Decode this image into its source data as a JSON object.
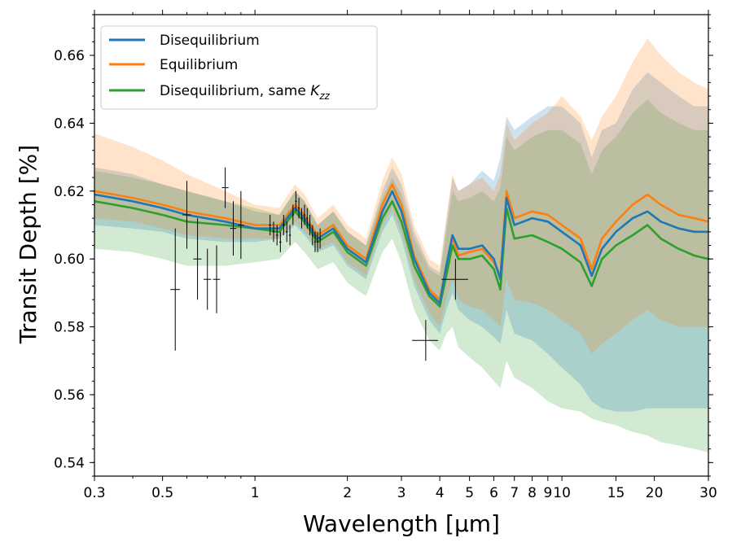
{
  "chart_data": {
    "type": "line",
    "xscale": "log",
    "xlim": [
      0.3,
      30
    ],
    "ylim": [
      0.536,
      0.672
    ],
    "xlabel": "Wavelength [µm]",
    "ylabel": "Transit Depth [%]",
    "xticks": [
      {
        "v": 0.3,
        "label": "0.3"
      },
      {
        "v": 0.5,
        "label": "0.5"
      },
      {
        "v": 1,
        "label": "1"
      },
      {
        "v": 2,
        "label": "2"
      },
      {
        "v": 3,
        "label": "3"
      },
      {
        "v": 4,
        "label": "4"
      },
      {
        "v": 5,
        "label": "5"
      },
      {
        "v": 6,
        "label": "6"
      },
      {
        "v": 7,
        "label": "7"
      },
      {
        "v": 8,
        "label": "8"
      },
      {
        "v": 9,
        "label": "9"
      },
      {
        "v": 10,
        "label": "10"
      },
      {
        "v": 15,
        "label": "15"
      },
      {
        "v": 20,
        "label": "20"
      },
      {
        "v": 30,
        "label": "30"
      }
    ],
    "yticks": [
      {
        "v": 0.54,
        "label": "0.54"
      },
      {
        "v": 0.56,
        "label": "0.56"
      },
      {
        "v": 0.58,
        "label": "0.58"
      },
      {
        "v": 0.6,
        "label": "0.60"
      },
      {
        "v": 0.62,
        "label": "0.62"
      },
      {
        "v": 0.64,
        "label": "0.64"
      },
      {
        "v": 0.66,
        "label": "0.66"
      }
    ],
    "legend": {
      "placement": "top-left",
      "entries": [
        {
          "name": "Disequilibrium",
          "color": "#1f77b4"
        },
        {
          "name": "Equilibrium",
          "color": "#ff7f0e"
        },
        {
          "name": "Disequilibrium, same ",
          "name_math": "K",
          "name_sub": "zz",
          "color": "#2ca02c"
        }
      ]
    },
    "series": [
      {
        "name": "Disequilibrium",
        "color": "#1f77b4",
        "x": [
          0.3,
          0.4,
          0.5,
          0.6,
          0.8,
          1.0,
          1.2,
          1.35,
          1.45,
          1.6,
          1.8,
          2.0,
          2.3,
          2.6,
          2.8,
          3.0,
          3.3,
          3.7,
          4.0,
          4.2,
          4.4,
          4.6,
          5.0,
          5.5,
          6.0,
          6.3,
          6.6,
          7.0,
          8.0,
          9.0,
          10.0,
          11.5,
          12.5,
          13.5,
          15.0,
          17.0,
          19.0,
          21.0,
          24.0,
          27.0,
          30.0
        ],
        "y": [
          0.619,
          0.617,
          0.615,
          0.613,
          0.611,
          0.609,
          0.609,
          0.615,
          0.612,
          0.606,
          0.609,
          0.603,
          0.599,
          0.614,
          0.62,
          0.614,
          0.6,
          0.59,
          0.587,
          0.598,
          0.607,
          0.603,
          0.603,
          0.604,
          0.6,
          0.594,
          0.618,
          0.61,
          0.612,
          0.611,
          0.608,
          0.604,
          0.595,
          0.603,
          0.608,
          0.612,
          0.614,
          0.611,
          0.609,
          0.608,
          0.608
        ],
        "band_lower": [
          0.61,
          0.609,
          0.608,
          0.606,
          0.605,
          0.605,
          0.606,
          0.61,
          0.607,
          0.602,
          0.604,
          0.598,
          0.594,
          0.608,
          0.613,
          0.606,
          0.592,
          0.582,
          0.578,
          0.585,
          0.59,
          0.585,
          0.582,
          0.58,
          0.577,
          0.575,
          0.585,
          0.578,
          0.576,
          0.572,
          0.568,
          0.563,
          0.558,
          0.556,
          0.555,
          0.555,
          0.556,
          0.556,
          0.556,
          0.556,
          0.556
        ],
        "band_upper": [
          0.627,
          0.625,
          0.622,
          0.62,
          0.617,
          0.614,
          0.613,
          0.62,
          0.617,
          0.61,
          0.614,
          0.608,
          0.604,
          0.62,
          0.627,
          0.622,
          0.608,
          0.598,
          0.596,
          0.611,
          0.624,
          0.62,
          0.622,
          0.626,
          0.623,
          0.63,
          0.642,
          0.638,
          0.642,
          0.645,
          0.645,
          0.64,
          0.63,
          0.638,
          0.64,
          0.65,
          0.655,
          0.652,
          0.648,
          0.645,
          0.645
        ]
      },
      {
        "name": "Equilibrium",
        "color": "#ff7f0e",
        "x": [
          0.3,
          0.4,
          0.5,
          0.6,
          0.8,
          1.0,
          1.2,
          1.35,
          1.45,
          1.6,
          1.8,
          2.0,
          2.3,
          2.6,
          2.8,
          3.0,
          3.3,
          3.7,
          4.0,
          4.2,
          4.4,
          4.6,
          5.0,
          5.5,
          6.0,
          6.3,
          6.6,
          7.0,
          8.0,
          9.0,
          10.0,
          11.5,
          12.5,
          13.5,
          15.0,
          17.0,
          19.0,
          21.0,
          24.0,
          27.0,
          30.0
        ],
        "y": [
          0.62,
          0.618,
          0.616,
          0.614,
          0.612,
          0.61,
          0.61,
          0.616,
          0.613,
          0.607,
          0.61,
          0.604,
          0.6,
          0.616,
          0.622,
          0.616,
          0.601,
          0.591,
          0.588,
          0.598,
          0.606,
          0.601,
          0.602,
          0.603,
          0.599,
          0.595,
          0.62,
          0.612,
          0.614,
          0.613,
          0.61,
          0.606,
          0.597,
          0.606,
          0.611,
          0.616,
          0.619,
          0.616,
          0.613,
          0.612,
          0.611
        ],
        "band_lower": [
          0.612,
          0.611,
          0.609,
          0.607,
          0.606,
          0.606,
          0.606,
          0.611,
          0.608,
          0.603,
          0.605,
          0.599,
          0.595,
          0.61,
          0.615,
          0.608,
          0.594,
          0.584,
          0.58,
          0.588,
          0.594,
          0.588,
          0.586,
          0.585,
          0.582,
          0.58,
          0.594,
          0.588,
          0.587,
          0.585,
          0.582,
          0.578,
          0.572,
          0.575,
          0.578,
          0.582,
          0.585,
          0.582,
          0.58,
          0.58,
          0.58
        ],
        "band_upper": [
          0.637,
          0.633,
          0.629,
          0.625,
          0.62,
          0.616,
          0.615,
          0.622,
          0.619,
          0.612,
          0.616,
          0.61,
          0.606,
          0.623,
          0.63,
          0.625,
          0.61,
          0.6,
          0.598,
          0.612,
          0.625,
          0.62,
          0.622,
          0.624,
          0.62,
          0.625,
          0.64,
          0.635,
          0.64,
          0.643,
          0.648,
          0.642,
          0.635,
          0.642,
          0.648,
          0.658,
          0.665,
          0.66,
          0.655,
          0.652,
          0.65
        ]
      },
      {
        "name": "Disequilibrium, same Kzz",
        "color": "#2ca02c",
        "x": [
          0.3,
          0.4,
          0.5,
          0.6,
          0.8,
          1.0,
          1.2,
          1.35,
          1.45,
          1.6,
          1.8,
          2.0,
          2.3,
          2.6,
          2.8,
          3.0,
          3.3,
          3.7,
          4.0,
          4.2,
          4.4,
          4.6,
          5.0,
          5.5,
          6.0,
          6.3,
          6.6,
          7.0,
          8.0,
          9.0,
          10.0,
          11.5,
          12.5,
          13.5,
          15.0,
          17.0,
          19.0,
          21.0,
          24.0,
          27.0,
          30.0
        ],
        "y": [
          0.617,
          0.615,
          0.613,
          0.611,
          0.61,
          0.609,
          0.608,
          0.614,
          0.611,
          0.605,
          0.608,
          0.602,
          0.598,
          0.612,
          0.617,
          0.611,
          0.598,
          0.589,
          0.586,
          0.595,
          0.604,
          0.6,
          0.6,
          0.601,
          0.597,
          0.591,
          0.615,
          0.606,
          0.607,
          0.605,
          0.603,
          0.599,
          0.592,
          0.6,
          0.604,
          0.607,
          0.61,
          0.606,
          0.603,
          0.601,
          0.6
        ],
        "band_lower": [
          0.603,
          0.602,
          0.6,
          0.598,
          0.598,
          0.599,
          0.6,
          0.605,
          0.602,
          0.597,
          0.599,
          0.593,
          0.589,
          0.602,
          0.606,
          0.599,
          0.585,
          0.576,
          0.573,
          0.578,
          0.58,
          0.574,
          0.571,
          0.568,
          0.564,
          0.562,
          0.57,
          0.565,
          0.562,
          0.558,
          0.556,
          0.555,
          0.553,
          0.552,
          0.551,
          0.549,
          0.548,
          0.546,
          0.545,
          0.544,
          0.543
        ],
        "band_upper": [
          0.626,
          0.624,
          0.622,
          0.62,
          0.617,
          0.615,
          0.613,
          0.62,
          0.617,
          0.61,
          0.614,
          0.608,
          0.604,
          0.618,
          0.624,
          0.619,
          0.606,
          0.597,
          0.595,
          0.608,
          0.62,
          0.617,
          0.618,
          0.62,
          0.617,
          0.621,
          0.636,
          0.632,
          0.636,
          0.638,
          0.638,
          0.634,
          0.625,
          0.632,
          0.636,
          0.643,
          0.647,
          0.643,
          0.64,
          0.638,
          0.638
        ]
      }
    ],
    "observations": [
      {
        "x": 0.55,
        "y": 0.591,
        "yerr": 0.018,
        "xerr": 0.02
      },
      {
        "x": 0.6,
        "y": 0.613,
        "yerr": 0.01,
        "xerr": 0.02
      },
      {
        "x": 0.65,
        "y": 0.6,
        "yerr": 0.012,
        "xerr": 0.02
      },
      {
        "x": 0.7,
        "y": 0.594,
        "yerr": 0.009,
        "xerr": 0.02
      },
      {
        "x": 0.75,
        "y": 0.594,
        "yerr": 0.01,
        "xerr": 0.02
      },
      {
        "x": 0.8,
        "y": 0.621,
        "yerr": 0.006,
        "xerr": 0.02
      },
      {
        "x": 0.85,
        "y": 0.609,
        "yerr": 0.008,
        "xerr": 0.02
      },
      {
        "x": 0.9,
        "y": 0.61,
        "yerr": 0.01,
        "xerr": 0.02
      },
      {
        "x": 1.12,
        "y": 0.61,
        "yerr": 0.003,
        "xerr": 0.01
      },
      {
        "x": 1.15,
        "y": 0.608,
        "yerr": 0.003,
        "xerr": 0.01
      },
      {
        "x": 1.18,
        "y": 0.607,
        "yerr": 0.003,
        "xerr": 0.01
      },
      {
        "x": 1.21,
        "y": 0.605,
        "yerr": 0.003,
        "xerr": 0.01
      },
      {
        "x": 1.24,
        "y": 0.61,
        "yerr": 0.003,
        "xerr": 0.01
      },
      {
        "x": 1.27,
        "y": 0.608,
        "yerr": 0.003,
        "xerr": 0.01
      },
      {
        "x": 1.3,
        "y": 0.607,
        "yerr": 0.003,
        "xerr": 0.01
      },
      {
        "x": 1.33,
        "y": 0.613,
        "yerr": 0.003,
        "xerr": 0.01
      },
      {
        "x": 1.36,
        "y": 0.617,
        "yerr": 0.003,
        "xerr": 0.01
      },
      {
        "x": 1.39,
        "y": 0.615,
        "yerr": 0.003,
        "xerr": 0.01
      },
      {
        "x": 1.42,
        "y": 0.612,
        "yerr": 0.003,
        "xerr": 0.01
      },
      {
        "x": 1.45,
        "y": 0.613,
        "yerr": 0.003,
        "xerr": 0.01
      },
      {
        "x": 1.48,
        "y": 0.612,
        "yerr": 0.003,
        "xerr": 0.01
      },
      {
        "x": 1.51,
        "y": 0.61,
        "yerr": 0.003,
        "xerr": 0.01
      },
      {
        "x": 1.54,
        "y": 0.607,
        "yerr": 0.003,
        "xerr": 0.01
      },
      {
        "x": 1.57,
        "y": 0.605,
        "yerr": 0.003,
        "xerr": 0.01
      },
      {
        "x": 1.6,
        "y": 0.605,
        "yerr": 0.003,
        "xerr": 0.01
      },
      {
        "x": 1.63,
        "y": 0.606,
        "yerr": 0.003,
        "xerr": 0.01
      },
      {
        "x": 3.6,
        "y": 0.576,
        "yerr": 0.006,
        "xerr": 0.35
      },
      {
        "x": 4.5,
        "y": 0.594,
        "yerr": 0.006,
        "xerr": 0.45
      }
    ]
  }
}
